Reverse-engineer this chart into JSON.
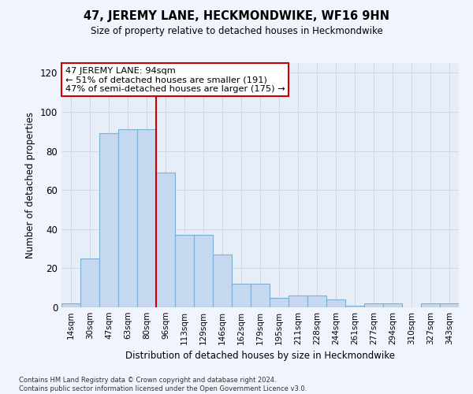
{
  "title": "47, JEREMY LANE, HECKMONDWIKE, WF16 9HN",
  "subtitle": "Size of property relative to detached houses in Heckmondwike",
  "xlabel": "Distribution of detached houses by size in Heckmondwike",
  "ylabel": "Number of detached properties",
  "bar_labels": [
    "14sqm",
    "30sqm",
    "47sqm",
    "63sqm",
    "80sqm",
    "96sqm",
    "113sqm",
    "129sqm",
    "146sqm",
    "162sqm",
    "179sqm",
    "195sqm",
    "211sqm",
    "228sqm",
    "244sqm",
    "261sqm",
    "277sqm",
    "294sqm",
    "310sqm",
    "327sqm",
    "343sqm"
  ],
  "bar_values": [
    2,
    25,
    89,
    91,
    91,
    69,
    37,
    37,
    27,
    12,
    12,
    5,
    6,
    6,
    4,
    1,
    2,
    2,
    0,
    2,
    2
  ],
  "bar_color": "#c5d8f0",
  "bar_edge_color": "#7bafd4",
  "vline_x": 4.5,
  "vline_color": "#cc0000",
  "annotation_text": "47 JEREMY LANE: 94sqm\n← 51% of detached houses are smaller (191)\n47% of semi-detached houses are larger (175) →",
  "annotation_box_color": "#ffffff",
  "annotation_box_edge": "#cc0000",
  "ylim": [
    0,
    125
  ],
  "yticks": [
    0,
    20,
    40,
    60,
    80,
    100,
    120
  ],
  "grid_color": "#d0d8e8",
  "bg_color": "#e8eef8",
  "fig_bg_color": "#f0f4fc",
  "footnote": "Contains HM Land Registry data © Crown copyright and database right 2024.\nContains public sector information licensed under the Open Government Licence v3.0."
}
